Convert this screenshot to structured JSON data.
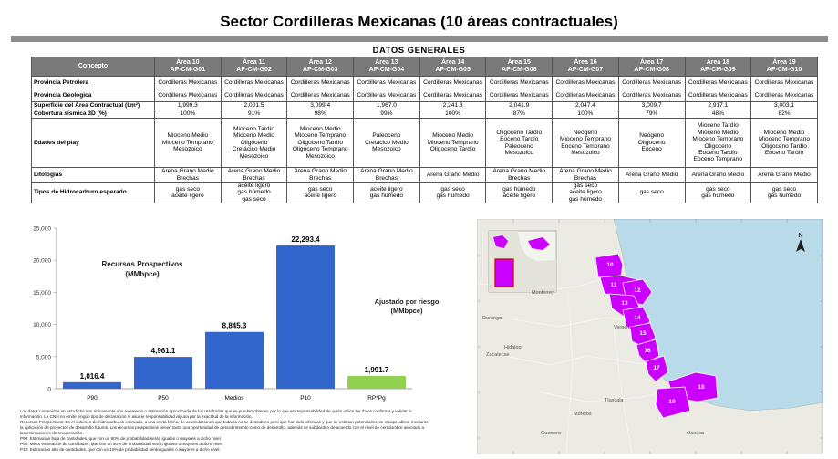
{
  "title": "Sector Cordilleras Mexicanas (10 áreas contractuales)",
  "table": {
    "heading": "DATOS GENERALES",
    "concept_label": "Concepto",
    "areas": [
      {
        "name": "Área 10",
        "code": "AP-CM-G01"
      },
      {
        "name": "Área 11",
        "code": "AP-CM-G02"
      },
      {
        "name": "Área 12",
        "code": "AP-CM-G03"
      },
      {
        "name": "Área 13",
        "code": "AP-CM-G04"
      },
      {
        "name": "Área 14",
        "code": "AP-CM-G05"
      },
      {
        "name": "Área 15",
        "code": "AP-CM-G06"
      },
      {
        "name": "Área 16",
        "code": "AP-CM-G07"
      },
      {
        "name": "Área 17",
        "code": "AP-CM-G08"
      },
      {
        "name": "Área 18",
        "code": "AP-CM-G09"
      },
      {
        "name": "Área 19",
        "code": "AP-CM-G10"
      }
    ],
    "rows": [
      {
        "label": "Provincia Petrolera",
        "h": 14,
        "values": [
          "Cordilleras Mexicanas",
          "Cordilleras Mexicanas",
          "Cordilleras Mexicanas",
          "Cordilleras Mexicanas",
          "Cordilleras Mexicanas",
          "Cordilleras Mexicanas",
          "Cordilleras Mexicanas",
          "Cordilleras Mexicanas",
          "Cordilleras Mexicanas",
          "Cordilleras Mexicanas"
        ]
      },
      {
        "label": "Provincia Geológica",
        "h": 14,
        "values": [
          "Cordilleras Mexicanas",
          "Cordilleras Mexicanas",
          "Cordilleras Mexicanas",
          "Cordilleras Mexicanas",
          "Cordilleras Mexicanas",
          "Cordilleras Mexicanas",
          "Cordilleras Mexicanas",
          "Cordilleras Mexicanas",
          "Cordilleras Mexicanas",
          "Cordilleras Mexicanas"
        ]
      },
      {
        "label": "Superficie del Área Contractual (km²)",
        "h": 9,
        "values": [
          "1,999.3",
          "2,001.5",
          "3,099.4",
          "1,967.0",
          "2,241.8",
          "2,041.9",
          "2,047.4",
          "3,009.7",
          "2,917.1",
          "3,003.1"
        ]
      },
      {
        "label": "Cobertura sísmica 3D (%)",
        "h": 9,
        "values": [
          "100%",
          "91%",
          "98%",
          "99%",
          "100%",
          "87%",
          "100%",
          "79%",
          "48%",
          "82%"
        ]
      },
      {
        "label": "Edades del play",
        "h": 54,
        "values": [
          "Mioceno Medio\nMioceno Temprano\nMesozoico",
          "Mioceno Tardío\nMioceno Medio\nOligoceno\nCretácico Medio\nMesozoico",
          "Mioceno Medio\nMioceno Temprano\nOligoceno Tardío\nOligoceno Temprano\nMesozoico",
          "Paleoceno\nCretácico Medio\nMesozoico",
          "Mioceno Medio\nMioceno Temprano\nOligoceno Tardío",
          "Oligoceno Tardío\nEoceno Tardío\nPaleoceno\nMesozoico",
          "Neógeno\nMioceno Temprano\nEoceno Temprano\nMesozoico",
          "Neógeno\nOligoceno\nEoceno",
          "Mioceno Tardío\nMioceno Medio\nMioceno Temprano\nOligoceno\nEoceno Tardío\nEoceno Temprano",
          "Mioceno Medio\nMioceno Temprano\nOligoceno Tardío\nEoceno Tardío"
        ]
      },
      {
        "label": "Litologías",
        "h": 16,
        "values": [
          "Arena Grano Medio\nBrechas",
          "Arena Grano Medio\nBrechas",
          "Arena Grano Medio\nBrechas",
          "Arena Grano Medio\nBrechas",
          "Arena Grano Medio",
          "Arena Grano Medio\nBrechas",
          "Arena Grano Medio\nBrechas",
          "Arena Grano Medio",
          "Arena Grano Medio",
          "Arena Grano Medio"
        ]
      },
      {
        "label": "Tipos de Hidrocarburo esperado",
        "h": 22,
        "values": [
          "gas seco\naceite ligero",
          "aceite ligero\ngas húmedo\ngas seco",
          "gas seco\naceite ligero",
          "aceite ligero\ngas húmedo",
          "gas seco\ngas húmedo",
          "gas húmedo\naceite ligero",
          "gas seco\naceite ligero\ngas húmedo",
          "gas seco",
          "gas seco\ngas húmedo",
          "gas seco\ngas húmedo"
        ]
      }
    ]
  },
  "chart_data": {
    "type": "bar",
    "categories": [
      "P90",
      "P50",
      "Medios",
      "P10",
      "RP*Pg"
    ],
    "values": [
      1016.4,
      4961.1,
      8845.3,
      22293.4,
      1991.7
    ],
    "value_labels": [
      "1,016.4",
      "4,961.1",
      "8,845.3",
      "22,293.4",
      "1,991.7"
    ],
    "colors": [
      "#3366cc",
      "#3366cc",
      "#3366cc",
      "#3366cc",
      "#92d050"
    ],
    "ylim": [
      0,
      25000
    ],
    "yticks": [
      0,
      5000,
      10000,
      15000,
      20000,
      25000
    ],
    "ytick_labels": [
      "0",
      "5,000",
      "10,000",
      "15,000",
      "20,000",
      "25,000"
    ],
    "annotations": {
      "prospectivos": [
        "Recursos Prospectivos",
        "(MMbpce)"
      ],
      "riesgo": [
        "Ajustado por riesgo",
        "(MMbpce)"
      ]
    },
    "grid": false
  },
  "notes": [
    "Los datos contenidos en esta ficha son únicamente una referencia o estimación aproximada de los resultados que se pueden obtener, por lo que es responsabilidad de quién utilice los datos confirmar y validar la",
    "información. La CNH no emite ningún tipo de declaración ni asume responsabilidad alguna por la exactitud de la información.",
    "Recursos Prospectivos: Es el volumen de hidrocarburos estimado, a una cierta fecha, de acumulaciones que todavía no se descubren pero que han sido inferidas y que se estiman potencialmente recuperables, mediante",
    "la aplicación de proyectos de desarrollo futuros. Los recursos prospectivos tienen tanto una oportunidad de descubrimiento como de desarrollo, además se subdividen de acuerdo con el nivel de certidumbre asociado a",
    "las estimaciones de recuperación.",
    "P90: Estimación baja de cantidades, que con un 90% de probabilidad serán iguales o mayores a dicho nivel.",
    "P50: Mejor estimación de cantidades, que con un 50% de probabilidad serán iguales o mayores a dicho nivel.",
    "P10: Estimación alta de cantidades, que con un 10% de probabilidad serán iguales o mayores a dicho nivel."
  ],
  "map": {
    "north": "N",
    "places": [
      "Monterrey",
      "Durango",
      "Zacatecas",
      "Hidalgo",
      "Veracruz",
      "Oaxaca",
      "Tlaxcala",
      "Guerrero",
      "Morelos"
    ],
    "area_labels": [
      "10",
      "11",
      "12",
      "13",
      "14",
      "15",
      "16",
      "17",
      "18",
      "19"
    ],
    "colors": {
      "area": "#cc00ff",
      "sea": "#b9dbe9",
      "land": "#e9e9e2"
    }
  }
}
